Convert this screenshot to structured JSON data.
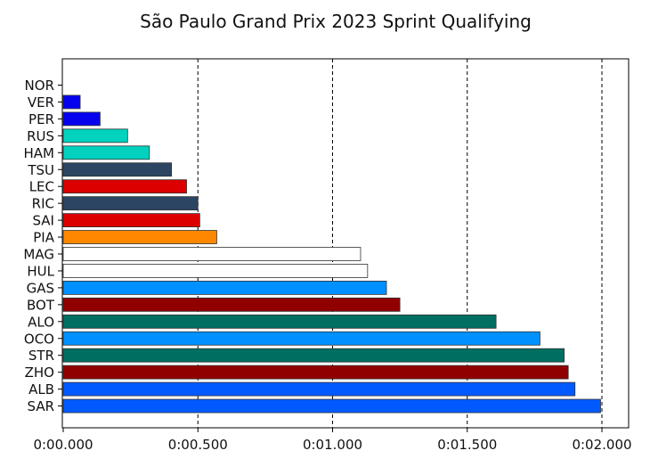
{
  "chart_data": {
    "type": "bar",
    "orientation": "horizontal",
    "title": "São Paulo Grand Prix 2023 Sprint Qualifying",
    "xlabel": "",
    "ylabel": "",
    "xlim": [
      0,
      2.1
    ],
    "x_ticks": [
      0,
      0.5,
      1.0,
      1.5,
      2.0
    ],
    "x_tick_labels": [
      "0:00.000",
      "0:00.500",
      "0:01.000",
      "0:01.500",
      "0:02.000"
    ],
    "grid": "vertical dashed lines at x ticks",
    "categories": [
      "NOR",
      "VER",
      "PER",
      "RUS",
      "HAM",
      "TSU",
      "LEC",
      "RIC",
      "SAI",
      "PIA",
      "MAG",
      "HUL",
      "GAS",
      "BOT",
      "ALO",
      "OCO",
      "STR",
      "ZHO",
      "ALB",
      "SAR"
    ],
    "values": [
      0.0,
      0.063,
      0.137,
      0.239,
      0.32,
      0.402,
      0.458,
      0.5,
      0.507,
      0.57,
      1.104,
      1.13,
      1.2,
      1.25,
      1.607,
      1.77,
      1.86,
      1.875,
      1.9,
      1.995
    ],
    "colors": [
      "#ff8700",
      "#0600ef",
      "#0600ef",
      "#00d2be",
      "#00d2be",
      "#2b4562",
      "#dc0000",
      "#2b4562",
      "#dc0000",
      "#ff8700",
      "#ffffff",
      "#ffffff",
      "#0090ff",
      "#900000",
      "#006f62",
      "#0090ff",
      "#006f62",
      "#900000",
      "#005aff",
      "#005aff"
    ]
  }
}
